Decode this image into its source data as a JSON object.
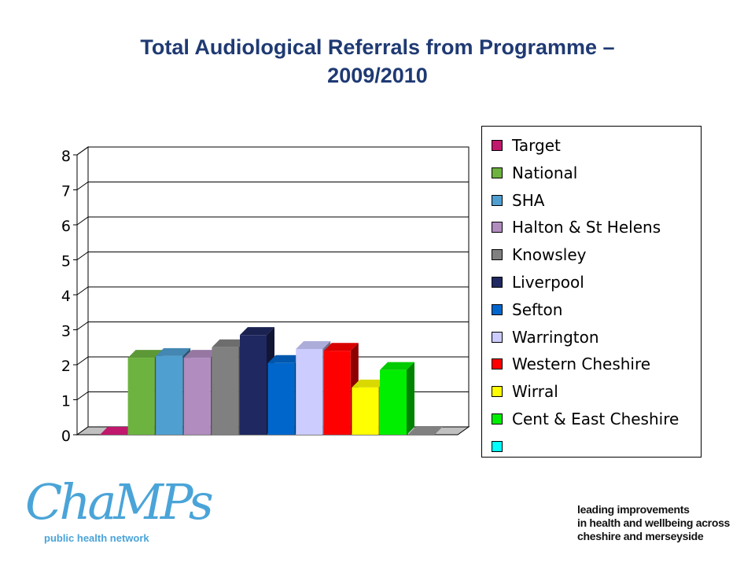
{
  "title_line1": "Total Audiological Referrals from Programme –",
  "title_line2": "2009/2010",
  "chart_data": {
    "type": "bar",
    "title": "Total Audiological Referrals from Programme – 2009/2010",
    "xlabel": "",
    "ylabel": "",
    "ylim": [
      0,
      8
    ],
    "yticks": [
      "0",
      "1",
      "2",
      "3",
      "4",
      "5",
      "6",
      "7",
      "8"
    ],
    "grid": true,
    "legend_position": "right",
    "series": [
      {
        "name": "Target",
        "value": 0,
        "color": "#c0186c"
      },
      {
        "name": "National",
        "value": 2.2,
        "color": "#6db33f"
      },
      {
        "name": "SHA",
        "value": 2.25,
        "color": "#4f9fd1"
      },
      {
        "name": "Halton & St Helens",
        "value": 2.2,
        "color": "#b08cbf"
      },
      {
        "name": "Knowsley",
        "value": 2.5,
        "color": "#808080"
      },
      {
        "name": "Liverpool",
        "value": 2.85,
        "color": "#1f2860"
      },
      {
        "name": "Sefton",
        "value": 2.05,
        "color": "#0066cc"
      },
      {
        "name": "Warrington",
        "value": 2.45,
        "color": "#ccccff"
      },
      {
        "name": "Western Cheshire",
        "value": 2.4,
        "color": "#ff0000"
      },
      {
        "name": "Wirral",
        "value": 1.35,
        "color": "#ffff00"
      },
      {
        "name": "Cent & East Cheshire",
        "value": 1.85,
        "color": "#00ee00"
      },
      {
        "name": "",
        "value": 0,
        "color": "#00ffff"
      }
    ]
  },
  "logo": {
    "wordmark": "ChaMPs",
    "subtitle": "public health network"
  },
  "tagline": [
    "leading improvements",
    "in health and wellbeing across",
    "cheshire and merseyside"
  ]
}
